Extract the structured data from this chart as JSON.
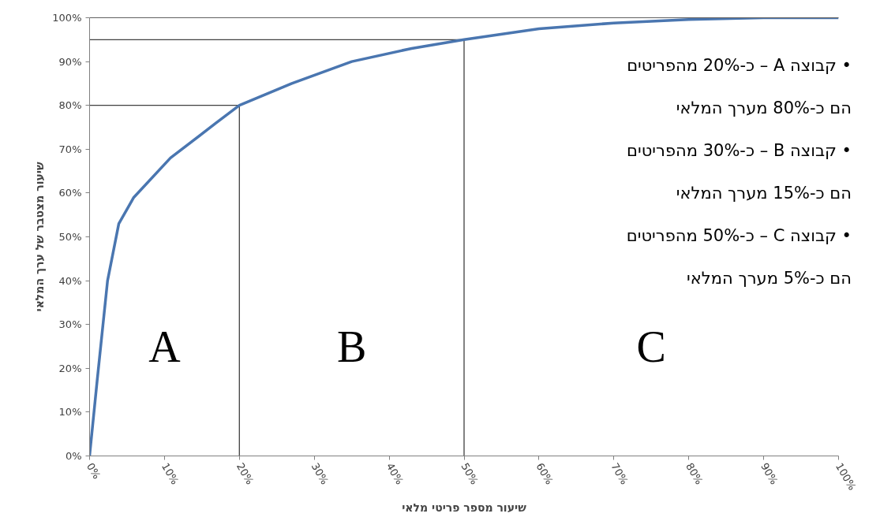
{
  "chart_data": {
    "type": "line",
    "xlabel": "שיעור מספר פריטי מלאי",
    "ylabel": "שיעור מצטבר של ערך המלאי",
    "x": [
      0,
      1,
      2.4,
      3.9,
      5.9,
      10.8,
      16.9,
      20,
      27,
      35,
      43,
      50,
      60,
      70,
      80,
      90,
      100
    ],
    "series": [
      {
        "color": "#4a76b0",
        "values": [
          0,
          17,
          40,
          53,
          59,
          68,
          76,
          80,
          85,
          90,
          93,
          95,
          97.5,
          98.8,
          99.6,
          100,
          100
        ]
      }
    ],
    "xlim": [
      0,
      100
    ],
    "ylim": [
      0,
      100
    ],
    "xticks": [
      {
        "value": 0,
        "label": "0%"
      },
      {
        "value": 10,
        "label": "10%"
      },
      {
        "value": 20,
        "label": "20%"
      },
      {
        "value": 30,
        "label": "30%"
      },
      {
        "value": 40,
        "label": "40%"
      },
      {
        "value": 50,
        "label": "50%"
      },
      {
        "value": 60,
        "label": "60%"
      },
      {
        "value": 70,
        "label": "70%"
      },
      {
        "value": 80,
        "label": "80%"
      },
      {
        "value": 90,
        "label": "90%"
      },
      {
        "value": 100,
        "label": "100%"
      }
    ],
    "yticks": [
      {
        "value": 0,
        "label": "0%"
      },
      {
        "value": 10,
        "label": "10%"
      },
      {
        "value": 20,
        "label": "20%"
      },
      {
        "value": 30,
        "label": "30%"
      },
      {
        "value": 40,
        "label": "40%"
      },
      {
        "value": 50,
        "label": "50%"
      },
      {
        "value": 60,
        "label": "60%"
      },
      {
        "value": 70,
        "label": "70%"
      },
      {
        "value": 80,
        "label": "80%"
      },
      {
        "value": 90,
        "label": "90%"
      },
      {
        "value": 100,
        "label": "100%"
      }
    ],
    "ref_lines": [
      {
        "axis": "y",
        "value": 80,
        "color": "#404040"
      },
      {
        "axis": "y",
        "value": 95,
        "color": "#404040"
      },
      {
        "axis": "x",
        "value": 20,
        "color": "#404040"
      },
      {
        "axis": "x",
        "value": 50,
        "color": "#404040"
      }
    ],
    "annotations": [
      "A",
      "B",
      "C",
      "• קבוצה A – כ-20% מהפריטים\nהם כ-80% מערך המלאי",
      "• קבוצה B – כ-30% מהפריטים\nהם כ-15% מערך המלאי",
      "• קבוצה C – כ-50% מהפריטים\nהם כ-5% מערך המלאי"
    ],
    "grid": false,
    "marker": "none",
    "line_style": "solid"
  }
}
